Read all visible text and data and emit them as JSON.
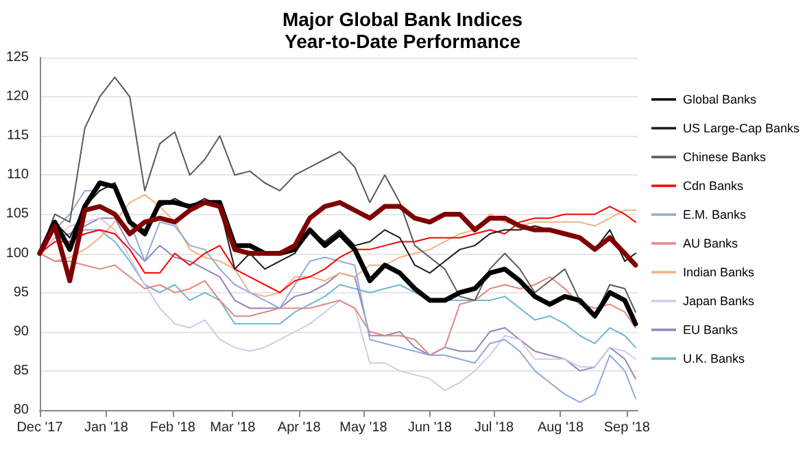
{
  "chart_data": {
    "type": "line",
    "title": "Major Global Bank Indices",
    "subtitle": "Year-to-Date Performance",
    "x": [
      "2017-12-01",
      "2017-12-08",
      "2017-12-15",
      "2017-12-22",
      "2017-12-29",
      "2018-01-05",
      "2018-01-12",
      "2018-01-19",
      "2018-01-26",
      "2018-02-02",
      "2018-02-09",
      "2018-02-16",
      "2018-02-23",
      "2018-03-02",
      "2018-03-09",
      "2018-03-16",
      "2018-03-23",
      "2018-03-30",
      "2018-04-06",
      "2018-04-13",
      "2018-04-20",
      "2018-04-27",
      "2018-05-04",
      "2018-05-11",
      "2018-05-18",
      "2018-05-25",
      "2018-06-01",
      "2018-06-08",
      "2018-06-15",
      "2018-06-22",
      "2018-06-29",
      "2018-07-06",
      "2018-07-13",
      "2018-07-20",
      "2018-07-27",
      "2018-08-03",
      "2018-08-10",
      "2018-08-17",
      "2018-08-24",
      "2018-08-31",
      "2018-09-05"
    ],
    "series": [
      {
        "color": "#7f0000",
        "values": [
          100,
          103.5,
          96.5,
          105.5,
          106,
          105,
          102.5,
          104,
          104.5,
          104,
          105.5,
          106.5,
          106,
          100.5,
          100,
          100,
          100,
          101,
          104.5,
          106,
          106.5,
          105.5,
          104.5,
          106,
          106,
          104.5,
          104,
          105,
          105,
          103,
          104.5,
          104.5,
          103.5,
          103,
          103,
          102.5,
          102,
          100.5,
          102,
          100,
          98.5
        ]
      },
      {
        "name": "Global Banks",
        "color": "#000000",
        "values": [
          100,
          104,
          100.5,
          106,
          109,
          108.5,
          104,
          102.5,
          106.5,
          106.5,
          106,
          106.5,
          106.5,
          101,
          101,
          100,
          100,
          100.5,
          103,
          101,
          102.5,
          100.5,
          96.5,
          98.5,
          97.5,
          95.5,
          94,
          94,
          95,
          95.5,
          97.5,
          98,
          96.5,
          94.5,
          93.5,
          94.5,
          94,
          92,
          95,
          94,
          91
        ]
      },
      {
        "name": "US Large-Cap Banks",
        "color": "#1a1a1a",
        "values": [
          100,
          104,
          102,
          106,
          108,
          109,
          104,
          103,
          106,
          107,
          106,
          107,
          106,
          98,
          100,
          98,
          99,
          100,
          103,
          101.5,
          103,
          101,
          101.5,
          103,
          102,
          98.5,
          97.5,
          99,
          100.5,
          101,
          102.5,
          103,
          103,
          103.5,
          103,
          102.5,
          102,
          100.5,
          103,
          99,
          100
        ]
      },
      {
        "name": "Chinese Banks",
        "color": "#595959",
        "values": [
          100,
          105,
          104,
          116,
          120,
          122.5,
          120,
          108,
          114,
          115.5,
          110,
          112,
          115,
          110,
          110.5,
          109,
          108,
          110,
          111,
          112,
          113,
          111,
          106.5,
          110,
          106.5,
          101,
          99.5,
          98,
          94.5,
          94,
          98,
          100,
          98,
          95,
          96.5,
          98,
          94,
          92,
          96,
          95.5,
          92.5
        ]
      },
      {
        "name": "Cdn Banks",
        "color": "#ff0000",
        "values": [
          100,
          101.5,
          101.5,
          102.5,
          103,
          102.5,
          100.5,
          97.5,
          97.5,
          100,
          98.5,
          100,
          101,
          98,
          97,
          96,
          95,
          96.5,
          97,
          98,
          99.5,
          100.5,
          100.5,
          101,
          101.5,
          101.5,
          102,
          102,
          102,
          102.5,
          103,
          102.5,
          104,
          104.5,
          104.5,
          105,
          105,
          105,
          106,
          105,
          104
        ]
      },
      {
        "name": "E.M. Banks",
        "color": "#8faadc",
        "values": [
          100,
          103,
          105,
          108,
          108,
          109,
          104,
          99,
          104,
          103.5,
          101,
          100.5,
          98,
          96,
          95,
          94,
          93,
          96,
          99,
          99.5,
          99,
          98.5,
          89,
          88.5,
          88,
          87.5,
          87,
          87,
          86.5,
          86,
          88.5,
          89,
          87.5,
          85,
          83.5,
          82,
          81,
          82,
          87,
          85,
          81.5
        ]
      },
      {
        "name": "AU Banks",
        "color": "#e0897f",
        "values": [
          100,
          99,
          99,
          98.5,
          98,
          98.5,
          97,
          95.5,
          96,
          95,
          95.5,
          96.5,
          94,
          92,
          92,
          92.5,
          93,
          93,
          93,
          93.5,
          94,
          93,
          90,
          89.5,
          89.5,
          89,
          87,
          88,
          93.5,
          94,
          95.5,
          96,
          95.5,
          96,
          97,
          95.5,
          93.5,
          93,
          93.5,
          92.5,
          90.5
        ]
      },
      {
        "name": "Indian Banks",
        "color": "#f4b183",
        "values": [
          100,
          99,
          99.5,
          100.5,
          102,
          104,
          106.5,
          107.5,
          106,
          104,
          100.5,
          99.5,
          99,
          98,
          95,
          94.5,
          95,
          97,
          97,
          96.5,
          97.5,
          97,
          98.5,
          98.5,
          99.5,
          100,
          100.5,
          101.5,
          102.5,
          103,
          105,
          104,
          103.5,
          104,
          104,
          104,
          104,
          103.5,
          104.5,
          105.5,
          105.5
        ]
      },
      {
        "name": "Japan Banks",
        "color": "#d5c8e6",
        "values": [
          100,
          102,
          103.5,
          104,
          104.5,
          103,
          99.5,
          96,
          93,
          91,
          90.5,
          91.5,
          89,
          88,
          87.5,
          88,
          89,
          90,
          91,
          92.5,
          94,
          93,
          86,
          86,
          85,
          84.5,
          84,
          82.5,
          83.5,
          85,
          87,
          89.5,
          89,
          86.5,
          86.5,
          86.5,
          85.5,
          85.5,
          88,
          87.5,
          86.5
        ]
      },
      {
        "name": "EU Banks",
        "color": "#9484b8",
        "values": [
          100,
          102,
          102.5,
          103.5,
          104.5,
          104.5,
          101,
          99,
          101,
          99.5,
          99,
          98,
          97,
          94,
          93,
          93,
          93,
          94.5,
          95,
          96,
          97.5,
          97,
          89.5,
          89.5,
          90,
          88,
          87,
          88,
          87.5,
          87.5,
          90,
          90.5,
          89,
          87.5,
          87,
          86.5,
          85,
          85.5,
          88,
          86.5,
          84
        ]
      },
      {
        "name": "U.K. Banks",
        "color": "#6fb7d3",
        "values": [
          100,
          102,
          102.5,
          103,
          103,
          101.5,
          99,
          96,
          95,
          96,
          94,
          95,
          94,
          91,
          91,
          91,
          91,
          92.5,
          93.5,
          94.5,
          96,
          95.5,
          95,
          95.5,
          96,
          95,
          94,
          94,
          94,
          94,
          94,
          94.5,
          93,
          91.5,
          92,
          91,
          89.5,
          88.5,
          90.5,
          89.5,
          88
        ]
      }
    ],
    "xlim": [
      "2017-12-01",
      "2018-09-06"
    ],
    "xticks": [
      {
        "value": "2017-12-01",
        "label": "Dec '17"
      },
      {
        "value": "2018-01-01",
        "label": "Jan '18"
      },
      {
        "value": "2018-02-01",
        "label": "Feb '18"
      },
      {
        "value": "2018-03-01",
        "label": "Mar '18"
      },
      {
        "value": "2018-04-01",
        "label": "Apr '18"
      },
      {
        "value": "2018-05-01",
        "label": "May '18"
      },
      {
        "value": "2018-06-01",
        "label": "Jun '18"
      },
      {
        "value": "2018-07-01",
        "label": "Jul '18"
      },
      {
        "value": "2018-08-01",
        "label": "Aug '18"
      },
      {
        "value": "2018-09-01",
        "label": "Sep '18"
      }
    ],
    "ylim": [
      80,
      125
    ],
    "yticks": [
      80,
      85,
      90,
      95,
      100,
      105,
      110,
      115,
      120,
      125
    ],
    "grid": "y",
    "legend": "right",
    "marker": "none",
    "line_style": "solid"
  }
}
